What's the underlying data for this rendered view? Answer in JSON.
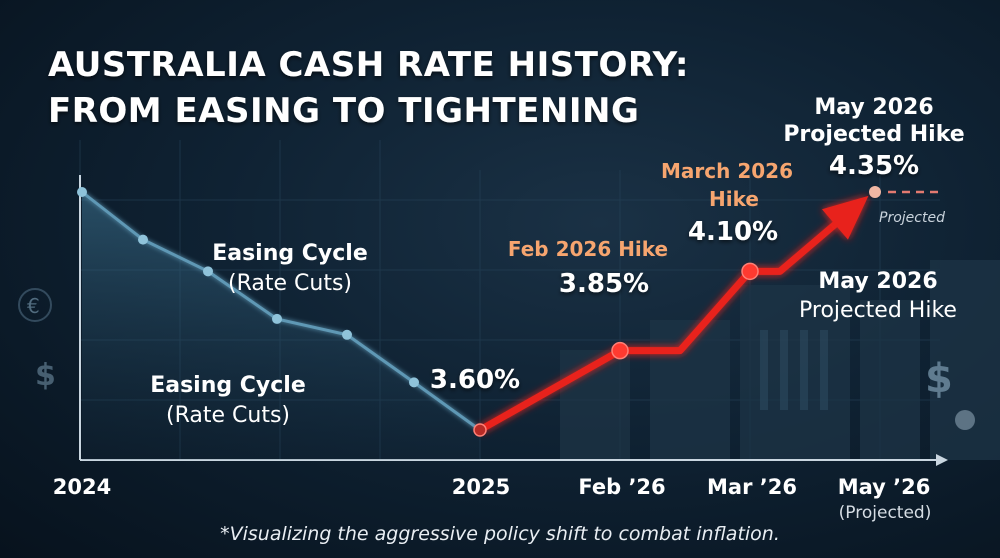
{
  "title": {
    "line1": "AUSTRALIA CASH RATE HISTORY:",
    "line2": "FROM EASING TO TIGHTENING"
  },
  "colors": {
    "easing_line": "#5f98b5",
    "easing_point": "#8fc3da",
    "hike_line": "#e8231e",
    "hike_point": "#ff3a30",
    "projected_point": "#f0b7a4",
    "projected_dash": "#e37a70",
    "orange_label": "#f6a56f",
    "background": "#0f2233"
  },
  "chart_data": {
    "type": "line",
    "x_ticks": [
      "2024",
      "2025",
      "Feb ’26",
      "Mar ’26",
      "May ’26"
    ],
    "x_tick_sub": {
      "May ’26": "(Projected)"
    },
    "series": [
      {
        "segment": "easing",
        "points": [
          {
            "x": "2024",
            "y": 4.35
          },
          {
            "x": "2024-q1",
            "y": 4.2
          },
          {
            "x": "2024-q2",
            "y": 4.1
          },
          {
            "x": "2024-q3",
            "y": 3.95
          },
          {
            "x": "2024-q4",
            "y": 3.9
          },
          {
            "x": "2024-q5",
            "y": 3.75
          },
          {
            "x": "2025",
            "y": 3.6
          }
        ]
      },
      {
        "segment": "tightening",
        "points": [
          {
            "x": "2025",
            "y": 3.6
          },
          {
            "x": "Feb ’26",
            "y": 3.85
          },
          {
            "x": "Feb ’26+",
            "y": 3.85
          },
          {
            "x": "Mar ’26",
            "y": 4.1
          },
          {
            "x": "Mar ’26+",
            "y": 4.1
          },
          {
            "x": "May ’26",
            "y": 4.35
          }
        ]
      }
    ],
    "annotations": {
      "easing1_title": "Easing Cycle",
      "easing1_sub": "(Rate Cuts)",
      "easing2_title": "Easing Cycle",
      "easing2_sub": "(Rate Cuts)",
      "start_value": "3.60%",
      "feb_label": "Feb 2026 Hike",
      "feb_value": "3.85%",
      "mar_label_1": "March 2026",
      "mar_label_2": "Hike",
      "mar_value": "4.10%",
      "may_top_1": "May 2026",
      "may_top_2": "Projected Hike",
      "may_value": "4.35%",
      "projected_tag": "Projected",
      "may_side_1": "May 2026",
      "may_side_2": "Projected Hike"
    },
    "footnote": "*Visualizing the aggressive policy shift to combat inflation."
  }
}
